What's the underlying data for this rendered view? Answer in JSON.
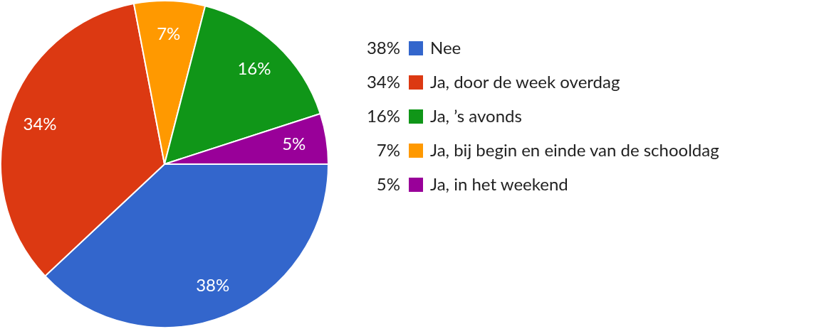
{
  "chart_data": {
    "type": "pie",
    "categories": [
      "Nee",
      "Ja, door de week overdag",
      "Ja, bij begin en einde van de schooldag",
      "Ja, ’s avonds",
      "Ja, in het weekend"
    ],
    "values": [
      38,
      34,
      7,
      16,
      5
    ],
    "colors": [
      "#3366cc",
      "#dc3912",
      "#ff9900",
      "#109618",
      "#990099"
    ],
    "value_labels": [
      "38%",
      "34%",
      "7%",
      "16%",
      "5%"
    ],
    "legend": "right"
  }
}
